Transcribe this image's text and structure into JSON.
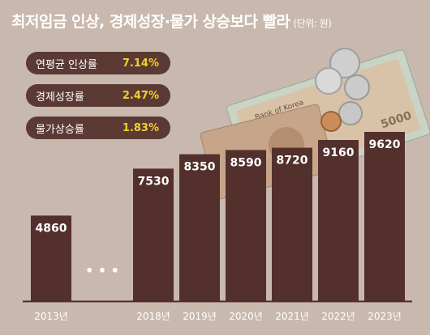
{
  "title": "최저임금 인상, 경제성장·물가 상승보다 빨라",
  "unit": "(단위: 원)",
  "stats": [
    {
      "label": "연평균 인상률",
      "value": "7.14%"
    },
    {
      "label": "경제성장률",
      "value": "2.47%"
    },
    {
      "label": "물가상승률",
      "value": "1.83%"
    }
  ],
  "ellipsis": "• • •",
  "banknote": {
    "text": "5000",
    "bank": "Bank of Korea"
  },
  "chart_data": {
    "type": "bar",
    "categories": [
      "2013년",
      "2018년",
      "2019년",
      "2020년",
      "2021년",
      "2022년",
      "2023년"
    ],
    "values": [
      4860,
      7530,
      8350,
      8590,
      8720,
      9160,
      9620
    ],
    "title": "최저임금 인상, 경제성장·물가 상승보다 빨라",
    "ylabel": "",
    "unit": "(단위: 원)",
    "grid": false,
    "colors": {
      "bar": "#53302b",
      "axis": "#4a2b26",
      "label": "#ffffff",
      "background": "#c9b8ae"
    }
  }
}
